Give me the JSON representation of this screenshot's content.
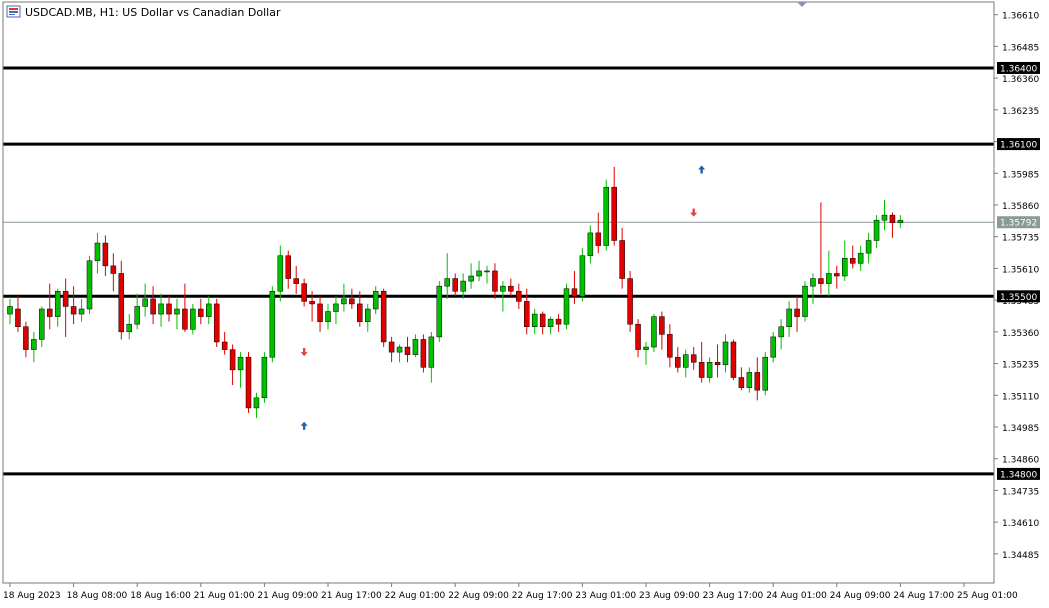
{
  "header": {
    "symbol_text": "USDCAD.MB, H1:  US Dollar vs Canadian Dollar"
  },
  "chart_data": {
    "type": "candlestick",
    "symbol": "USDCAD.MB",
    "timeframe": "H1",
    "ylim": [
      1.3437,
      1.3666
    ],
    "y_ticks": [
      "1.36610",
      "1.36485",
      "1.36360",
      "1.36235",
      "1.36110",
      "1.35985",
      "1.35860",
      "1.35735",
      "1.35610",
      "1.35485",
      "1.35360",
      "1.35235",
      "1.35110",
      "1.34985",
      "1.34860",
      "1.34735",
      "1.34610",
      "1.34485"
    ],
    "x_ticks": [
      {
        "label": "18 Aug 2023",
        "index": 0
      },
      {
        "label": "18 Aug 08:00",
        "index": 8
      },
      {
        "label": "18 Aug 16:00",
        "index": 16
      },
      {
        "label": "21 Aug 01:00",
        "index": 24
      },
      {
        "label": "21 Aug 09:00",
        "index": 32
      },
      {
        "label": "21 Aug 17:00",
        "index": 40
      },
      {
        "label": "22 Aug 01:00",
        "index": 48
      },
      {
        "label": "22 Aug 09:00",
        "index": 56
      },
      {
        "label": "22 Aug 17:00",
        "index": 64
      },
      {
        "label": "23 Aug 01:00",
        "index": 72
      },
      {
        "label": "23 Aug 09:00",
        "index": 80
      },
      {
        "label": "23 Aug 17:00",
        "index": 88
      },
      {
        "label": "24 Aug 01:00",
        "index": 96
      },
      {
        "label": "24 Aug 09:00",
        "index": 104
      },
      {
        "label": "24 Aug 17:00",
        "index": 112
      },
      {
        "label": "25 Aug 01:00",
        "index": 120
      }
    ],
    "horizontal_lines": [
      {
        "price": 1.364,
        "label": "1.36400"
      },
      {
        "price": 1.361,
        "label": "1.36100"
      },
      {
        "price": 1.355,
        "label": "1.35500"
      },
      {
        "price": 1.348,
        "label": "1.34800"
      }
    ],
    "current_price": {
      "price": 1.35792,
      "label": "1.35792"
    },
    "bull_color": "#00c000",
    "bear_color": "#e00000",
    "candles": [
      [
        1.3543,
        1.3549,
        1.3539,
        1.3546
      ],
      [
        1.3545,
        1.355,
        1.3536,
        1.3538
      ],
      [
        1.3538,
        1.354,
        1.3526,
        1.3529
      ],
      [
        1.3529,
        1.3536,
        1.3524,
        1.3533
      ],
      [
        1.3533,
        1.3546,
        1.353,
        1.3545
      ],
      [
        1.3545,
        1.3555,
        1.3537,
        1.3542
      ],
      [
        1.3542,
        1.3553,
        1.3538,
        1.3552
      ],
      [
        1.3552,
        1.3557,
        1.3534,
        1.3546
      ],
      [
        1.3546,
        1.3554,
        1.3539,
        1.3543
      ],
      [
        1.3543,
        1.3549,
        1.354,
        1.3545
      ],
      [
        1.3545,
        1.3566,
        1.3543,
        1.3564
      ],
      [
        1.3564,
        1.3575,
        1.3559,
        1.3571
      ],
      [
        1.3571,
        1.3574,
        1.3558,
        1.3562
      ],
      [
        1.3562,
        1.3567,
        1.3552,
        1.3559
      ],
      [
        1.3559,
        1.3564,
        1.3533,
        1.3536
      ],
      [
        1.3536,
        1.3543,
        1.3533,
        1.3539
      ],
      [
        1.3539,
        1.3551,
        1.3537,
        1.3546
      ],
      [
        1.3546,
        1.3555,
        1.3542,
        1.3549
      ],
      [
        1.3549,
        1.3554,
        1.3539,
        1.3543
      ],
      [
        1.3543,
        1.3551,
        1.3538,
        1.3547
      ],
      [
        1.3547,
        1.355,
        1.354,
        1.3543
      ],
      [
        1.3543,
        1.3549,
        1.3537,
        1.3545
      ],
      [
        1.3545,
        1.3555,
        1.3536,
        1.3537
      ],
      [
        1.3537,
        1.3547,
        1.3535,
        1.3545
      ],
      [
        1.3545,
        1.3549,
        1.3539,
        1.3542
      ],
      [
        1.3542,
        1.355,
        1.3539,
        1.3547
      ],
      [
        1.3547,
        1.3549,
        1.353,
        1.3532
      ],
      [
        1.3532,
        1.3536,
        1.3527,
        1.3529
      ],
      [
        1.3529,
        1.3531,
        1.3515,
        1.3521
      ],
      [
        1.3521,
        1.3528,
        1.3514,
        1.3526
      ],
      [
        1.3526,
        1.3528,
        1.3504,
        1.3506
      ],
      [
        1.3506,
        1.3512,
        1.3502,
        1.351
      ],
      [
        1.351,
        1.3528,
        1.3508,
        1.3526
      ],
      [
        1.3526,
        1.3554,
        1.3524,
        1.3552
      ],
      [
        1.3552,
        1.357,
        1.3548,
        1.3566
      ],
      [
        1.3566,
        1.3568,
        1.3553,
        1.3557
      ],
      [
        1.3557,
        1.3562,
        1.3551,
        1.3555
      ],
      [
        1.3555,
        1.3557,
        1.3546,
        1.3548
      ],
      [
        1.3548,
        1.3552,
        1.354,
        1.3547
      ],
      [
        1.3547,
        1.355,
        1.3536,
        1.354
      ],
      [
        1.354,
        1.3547,
        1.3537,
        1.3544
      ],
      [
        1.3544,
        1.355,
        1.3539,
        1.3547
      ],
      [
        1.3547,
        1.3555,
        1.3544,
        1.3549
      ],
      [
        1.3549,
        1.3553,
        1.3545,
        1.3547
      ],
      [
        1.3547,
        1.3552,
        1.3538,
        1.354
      ],
      [
        1.354,
        1.3547,
        1.3536,
        1.3545
      ],
      [
        1.3545,
        1.3554,
        1.3543,
        1.3552
      ],
      [
        1.3552,
        1.3553,
        1.353,
        1.3532
      ],
      [
        1.3532,
        1.3534,
        1.3524,
        1.3528
      ],
      [
        1.3528,
        1.3531,
        1.3524,
        1.353
      ],
      [
        1.353,
        1.3534,
        1.3524,
        1.3527
      ],
      [
        1.3527,
        1.3535,
        1.3526,
        1.3533
      ],
      [
        1.3533,
        1.3535,
        1.352,
        1.3522
      ],
      [
        1.3522,
        1.3536,
        1.3516,
        1.3534
      ],
      [
        1.3534,
        1.3556,
        1.3532,
        1.3554
      ],
      [
        1.3554,
        1.3567,
        1.3549,
        1.3557
      ],
      [
        1.3557,
        1.3559,
        1.355,
        1.3552
      ],
      [
        1.3552,
        1.3559,
        1.3549,
        1.3556
      ],
      [
        1.3556,
        1.3563,
        1.3553,
        1.3558
      ],
      [
        1.3558,
        1.3564,
        1.3556,
        1.356
      ],
      [
        1.356,
        1.3562,
        1.3555,
        1.356
      ],
      [
        1.356,
        1.3563,
        1.3549,
        1.3552
      ],
      [
        1.3552,
        1.3556,
        1.3544,
        1.3554
      ],
      [
        1.3554,
        1.3557,
        1.355,
        1.3552
      ],
      [
        1.3552,
        1.3555,
        1.3545,
        1.3548
      ],
      [
        1.3548,
        1.3553,
        1.3535,
        1.3538
      ],
      [
        1.3538,
        1.3545,
        1.3535,
        1.3543
      ],
      [
        1.3543,
        1.3544,
        1.3535,
        1.3538
      ],
      [
        1.3538,
        1.3542,
        1.3535,
        1.3541
      ],
      [
        1.3541,
        1.3543,
        1.3536,
        1.3539
      ],
      [
        1.3539,
        1.3555,
        1.3537,
        1.3553
      ],
      [
        1.3553,
        1.356,
        1.3547,
        1.355
      ],
      [
        1.355,
        1.3569,
        1.3548,
        1.3566
      ],
      [
        1.3566,
        1.3578,
        1.3563,
        1.3575
      ],
      [
        1.3575,
        1.3583,
        1.3567,
        1.357
      ],
      [
        1.357,
        1.3596,
        1.3568,
        1.3593
      ],
      [
        1.3593,
        1.3601,
        1.357,
        1.3572
      ],
      [
        1.3572,
        1.3577,
        1.3553,
        1.3557
      ],
      [
        1.3557,
        1.356,
        1.3536,
        1.3539
      ],
      [
        1.3539,
        1.3541,
        1.3526,
        1.3529
      ],
      [
        1.3529,
        1.3532,
        1.3523,
        1.353
      ],
      [
        1.353,
        1.3543,
        1.3528,
        1.3542
      ],
      [
        1.3542,
        1.3544,
        1.3529,
        1.3535
      ],
      [
        1.3535,
        1.3539,
        1.3522,
        1.3526
      ],
      [
        1.3526,
        1.353,
        1.352,
        1.3522
      ],
      [
        1.3522,
        1.3529,
        1.3518,
        1.3527
      ],
      [
        1.3527,
        1.353,
        1.3521,
        1.3524
      ],
      [
        1.3524,
        1.3532,
        1.3516,
        1.3518
      ],
      [
        1.3518,
        1.3526,
        1.3516,
        1.3524
      ],
      [
        1.3524,
        1.3531,
        1.3518,
        1.3523
      ],
      [
        1.3523,
        1.3535,
        1.352,
        1.3532
      ],
      [
        1.3532,
        1.3533,
        1.3517,
        1.3518
      ],
      [
        1.3518,
        1.3522,
        1.3513,
        1.3514
      ],
      [
        1.3514,
        1.3522,
        1.3512,
        1.352
      ],
      [
        1.352,
        1.3526,
        1.3509,
        1.3513
      ],
      [
        1.3513,
        1.3528,
        1.3511,
        1.3526
      ],
      [
        1.3526,
        1.3536,
        1.3524,
        1.3534
      ],
      [
        1.3534,
        1.3541,
        1.3529,
        1.3538
      ],
      [
        1.3538,
        1.3548,
        1.3534,
        1.3545
      ],
      [
        1.3545,
        1.355,
        1.3536,
        1.3542
      ],
      [
        1.3542,
        1.3556,
        1.354,
        1.3554
      ],
      [
        1.3554,
        1.3559,
        1.3547,
        1.3557
      ],
      [
        1.3557,
        1.3587,
        1.3551,
        1.3555
      ],
      [
        1.3555,
        1.3568,
        1.355,
        1.3559
      ],
      [
        1.3559,
        1.3562,
        1.3553,
        1.3558
      ],
      [
        1.3558,
        1.3572,
        1.3556,
        1.3565
      ],
      [
        1.3565,
        1.357,
        1.3561,
        1.3563
      ],
      [
        1.3563,
        1.357,
        1.356,
        1.3567
      ],
      [
        1.3567,
        1.3575,
        1.3563,
        1.3572
      ],
      [
        1.3572,
        1.3582,
        1.3569,
        1.358
      ],
      [
        1.358,
        1.3588,
        1.3576,
        1.3582
      ],
      [
        1.3582,
        1.3583,
        1.3573,
        1.3579
      ],
      [
        1.3579,
        1.3582,
        1.3577,
        1.358
      ]
    ],
    "signals": [
      {
        "index": 37,
        "price": 1.3528,
        "dir": "sell"
      },
      {
        "index": 37,
        "price": 1.3499,
        "dir": "buy"
      },
      {
        "index": 86,
        "price": 1.3583,
        "dir": "sell"
      },
      {
        "index": 87,
        "price": 1.36,
        "dir": "buy"
      }
    ]
  }
}
